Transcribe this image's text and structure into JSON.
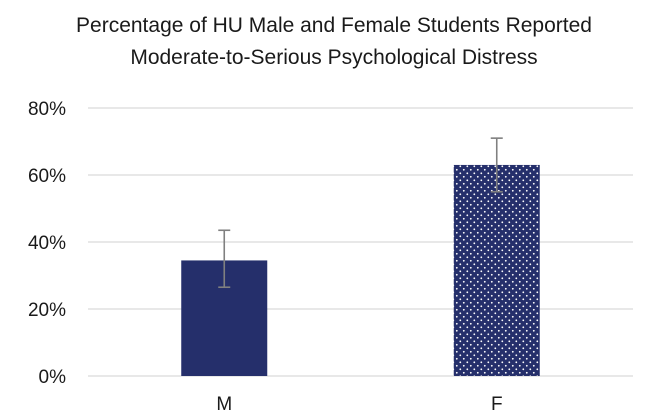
{
  "chart_data": {
    "type": "bar",
    "title": "Percentage of HU Male and Female Students Reported Moderate-to-Serious Psychological Distress",
    "categories": [
      "M",
      "F"
    ],
    "values": [
      0.345,
      0.63
    ],
    "error_low": [
      0.265,
      0.55
    ],
    "error_high": [
      0.435,
      0.71
    ],
    "ylim": [
      0,
      0.8
    ],
    "yticks": [
      {
        "value": 0,
        "label": "0%"
      },
      {
        "value": 0.2,
        "label": "20%"
      },
      {
        "value": 0.4,
        "label": "40%"
      },
      {
        "value": 0.6,
        "label": "60%"
      },
      {
        "value": 0.8,
        "label": "80%"
      }
    ],
    "grid": true,
    "legend": "none",
    "colors": {
      "bar": "#252f6b",
      "dot": "#ffffff",
      "grid": "#d9d9d9",
      "error": "#808080"
    },
    "bar_fills": [
      "solid",
      "dotted"
    ]
  }
}
